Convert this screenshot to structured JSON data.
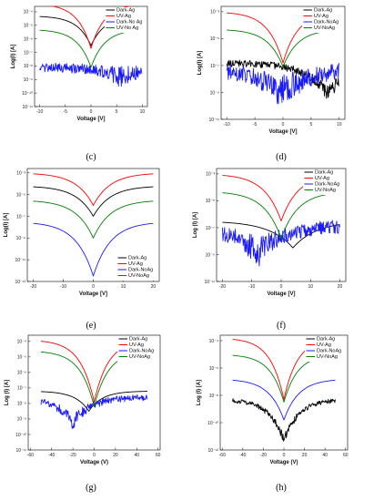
{
  "chart_data": [
    {
      "type": "line",
      "caption": "(c)",
      "xlabel": "Voltage [V]",
      "ylabel": "Log(I) [A]",
      "xlim": [
        -11,
        11
      ],
      "log_ylim": [
        -11,
        -3.6
      ],
      "xticks": [
        -10,
        -5,
        0,
        5,
        10
      ],
      "xtick_labels": [
        "-10",
        "-5",
        "0",
        "5",
        "10"
      ],
      "yticks": [
        -4,
        -5,
        -6,
        -7,
        -8,
        -9,
        -10,
        -11
      ],
      "ytick_labels": [
        "10⁻⁴",
        "10⁻⁵",
        "10⁻⁶",
        "10⁻⁷",
        "10⁻⁸",
        "10⁻⁹",
        "10⁻¹⁰",
        "10⁻¹¹"
      ],
      "legend": "top-right",
      "series": [
        {
          "name": "Dark-Ag",
          "color": "#000000",
          "model": {
            "a": -4.3,
            "span": 10,
            "dip": 2.2,
            "c": 3.8,
            "x0": 0
          }
        },
        {
          "name": "UV-Ag",
          "color": "#ff0000",
          "model": {
            "a": -3.4,
            "span": 10,
            "dip": 3.3,
            "c": 3.8,
            "x0": 0
          }
        },
        {
          "name": "Dark-No Ag",
          "color": "#1a1aff",
          "model": {
            "a": -8.1,
            "span": 10,
            "dip": 0.8,
            "c": 2.5,
            "x0": 6,
            "noise": 0.35,
            "seed": 3
          }
        },
        {
          "name": "UV-No Ag",
          "color": "#008000",
          "model": {
            "a": -5.3,
            "span": 10,
            "dip": 2.8,
            "c": 3.8,
            "x0": 0
          }
        }
      ]
    },
    {
      "type": "line",
      "caption": "(d)",
      "xlabel": "Voltage [V]",
      "ylabel": "Log(I) [A]",
      "xlim": [
        -11,
        11
      ],
      "log_ylim": [
        -11,
        -2.6
      ],
      "xticks": [
        -10,
        -5,
        0,
        5,
        10
      ],
      "xtick_labels": [
        "-10",
        "-5",
        "0",
        "5",
        "10"
      ],
      "yticks": [
        -3,
        -5,
        -7,
        -9,
        -11
      ],
      "ytick_labels": [
        "10⁻³",
        "10⁻⁵",
        "10⁻⁷",
        "10⁻⁹",
        "10⁻¹¹"
      ],
      "legend": "top-right",
      "series": [
        {
          "name": "Dark-Ag",
          "color": "#000000",
          "model": {
            "a": -6.8,
            "span": 10,
            "dip": 2.3,
            "c": 2.5,
            "x0": 8,
            "noise": 0.25,
            "seed": 5
          }
        },
        {
          "name": "UV-Ag",
          "color": "#ff0000",
          "model": {
            "a": -3.0,
            "span": 10,
            "dip": 3.8,
            "c": 3.8,
            "x0": 0
          }
        },
        {
          "name": "Dark-NoAg",
          "color": "#1a1aff",
          "model": {
            "a": -7.2,
            "span": 10,
            "dip": 1.8,
            "c": 2.0,
            "x0": 0,
            "noise": 0.6,
            "seed": 7
          }
        },
        {
          "name": "UV-NoAg",
          "color": "#008000",
          "model": {
            "a": -4.3,
            "span": 10,
            "dip": 2.8,
            "c": 3.8,
            "x0": 0
          }
        }
      ]
    },
    {
      "type": "line",
      "caption": "(e)",
      "xlabel": "Voltage [V]",
      "ylabel": "Log(I) [A]",
      "xlim": [
        -22,
        22
      ],
      "log_ylim": [
        -13,
        -2.6
      ],
      "xticks": [
        -20,
        -10,
        0,
        10,
        20
      ],
      "xtick_labels": [
        "-20",
        "-10",
        "0",
        "10",
        "20"
      ],
      "yticks": [
        -3,
        -5,
        -7,
        -9,
        -11,
        -13
      ],
      "ytick_labels": [
        "10⁻³",
        "10⁻⁵",
        "10⁻⁷",
        "10⁻⁹",
        "10⁻¹¹",
        "10⁻¹³"
      ],
      "legend": "bottom-right",
      "series": [
        {
          "name": "Dark-Ag",
          "color": "#000000",
          "model": {
            "a": -4.2,
            "span": 20,
            "dip": 2.8,
            "c": 3.5,
            "x0": 0
          }
        },
        {
          "name": "UV-Ag",
          "color": "#ff0000",
          "model": {
            "a": -3.0,
            "span": 20,
            "dip": 3.0,
            "c": 3.5,
            "x0": 0
          }
        },
        {
          "name": "Dark-NoAg",
          "color": "#1a1aff",
          "model": {
            "a": -7.5,
            "span": 20,
            "dip": 5.0,
            "c": 3.5,
            "x0": 0
          }
        },
        {
          "name": "UV-NoAg",
          "color": "#008000",
          "model": {
            "a": -5.5,
            "span": 20,
            "dip": 3.5,
            "c": 3.5,
            "x0": 0
          }
        }
      ]
    },
    {
      "type": "line",
      "caption": "(f)",
      "xlabel": "Voltage [V]",
      "ylabel": "Log (I) [A]",
      "xlim": [
        -22,
        22
      ],
      "log_ylim": [
        -11,
        -2.6
      ],
      "xticks": [
        -20,
        -10,
        0,
        10,
        20
      ],
      "xtick_labels": [
        "-20",
        "-10",
        "0",
        "10",
        "20"
      ],
      "yticks": [
        -3,
        -5,
        -7,
        -9,
        -11
      ],
      "ytick_labels": [
        "10⁻³",
        "10⁻⁵",
        "10⁻⁷",
        "10⁻⁹",
        "10⁻¹¹"
      ],
      "legend": "top-right",
      "series": [
        {
          "name": "Dark-Ag",
          "color": "#000000",
          "model": {
            "a": -6.5,
            "span": 20,
            "dip": 2.0,
            "c": 2.5,
            "x0": 4
          }
        },
        {
          "name": "UV-Ag",
          "color": "#ff0000",
          "model": {
            "a": -3.0,
            "span": 20,
            "dip": 3.5,
            "c": 3.5,
            "x0": 0
          }
        },
        {
          "name": "Dark-NoAg",
          "color": "#1a1aff",
          "model": {
            "a": -6.8,
            "span": 20,
            "dip": 2.0,
            "c": 2.0,
            "x0": -8,
            "noise": 0.5,
            "seed": 11
          }
        },
        {
          "name": "UV-NoAg",
          "color": "#008000",
          "model": {
            "a": -4.3,
            "span": 20,
            "dip": 3.5,
            "c": 3.5,
            "x0": 0
          }
        }
      ]
    },
    {
      "type": "line",
      "caption": "(g)",
      "xlabel": "Voltage (V)",
      "ylabel": "Log (I) [A]",
      "xlim": [
        -62,
        62
      ],
      "log_ylim": [
        -11,
        -3.6
      ],
      "xticks": [
        -60,
        -40,
        -20,
        0,
        20,
        40,
        60
      ],
      "xtick_labels": [
        "-60",
        "-40",
        "-20",
        "0",
        "20",
        "40",
        "60"
      ],
      "yticks": [
        -4,
        -5,
        -6,
        -7,
        -8,
        -9,
        -10,
        -11
      ],
      "ytick_labels": [
        "10⁻⁴",
        "10⁻⁵",
        "10⁻⁶",
        "10⁻⁷",
        "10⁻⁸",
        "10⁻⁹",
        "10⁻¹⁰",
        "10⁻¹¹"
      ],
      "legend": "top-right",
      "series": [
        {
          "name": "Dark-Ag",
          "color": "#000000",
          "model": {
            "a": -7.2,
            "span": 50,
            "dip": 1.3,
            "c": 4,
            "x0": -5
          }
        },
        {
          "name": "UV-Ag",
          "color": "#ff0000",
          "model": {
            "a": -3.9,
            "span": 50,
            "dip": 4.0,
            "c": 3.8,
            "x0": 0
          }
        },
        {
          "name": "Dark-NoAg",
          "color": "#1a1aff",
          "model": {
            "a": -7.6,
            "span": 50,
            "dip": 1.6,
            "c": 3,
            "x0": -20,
            "noise": 0.2,
            "seed": 13
          }
        },
        {
          "name": "UV-NoAg",
          "color": "#008000",
          "model": {
            "a": -4.6,
            "span": 50,
            "dip": 3.6,
            "c": 3.8,
            "x0": 0
          }
        }
      ]
    },
    {
      "type": "line",
      "caption": "(h)",
      "xlabel": "Voltage (V)",
      "ylabel": "Log (I) [A]",
      "xlim": [
        -62,
        62
      ],
      "log_ylim": [
        -12,
        -3.6
      ],
      "xticks": [
        -60,
        -40,
        -20,
        0,
        20,
        40,
        60
      ],
      "xtick_labels": [
        "-60",
        "-40",
        "-20",
        "0",
        "20",
        "40",
        "60"
      ],
      "yticks": [
        -4,
        -6,
        -8,
        -10,
        -12
      ],
      "ytick_labels": [
        "10⁻⁴",
        "10⁻⁶",
        "10⁻⁸",
        "10⁻¹⁰",
        "10⁻¹²"
      ],
      "legend": "top-right",
      "series": [
        {
          "name": "Dark-Ag",
          "color": "#000000",
          "model": {
            "a": -8.3,
            "span": 50,
            "dip": 3.0,
            "c": 3.5,
            "x0": 0,
            "noise": 0.15,
            "seed": 17
          }
        },
        {
          "name": "UV-Ag",
          "color": "#ff0000",
          "model": {
            "a": -3.8,
            "span": 50,
            "dip": 4.5,
            "c": 3.8,
            "x0": 0
          }
        },
        {
          "name": "Dark-NoAg",
          "color": "#1a1aff",
          "model": {
            "a": -6.8,
            "span": 50,
            "dip": 3.0,
            "c": 3.5,
            "x0": 0
          }
        },
        {
          "name": "UV-NoAg",
          "color": "#008000",
          "model": {
            "a": -5.0,
            "span": 50,
            "dip": 3.5,
            "c": 3.8,
            "x0": 0
          }
        }
      ]
    }
  ]
}
